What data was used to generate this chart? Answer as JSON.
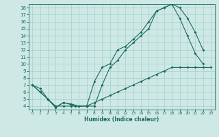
{
  "title": "",
  "xlabel": "Humidex (Indice chaleur)",
  "ylabel": "",
  "bg_color": "#cde8e5",
  "line_color": "#1a6b5a",
  "grid_color": "#a8cfc9",
  "xlim": [
    -0.5,
    23.5
  ],
  "ylim": [
    3.5,
    18.5
  ],
  "xtick_labels": [
    "0",
    "1",
    "2",
    "3",
    "4",
    "5",
    "6",
    "7",
    "8",
    "9",
    "10",
    "11",
    "12",
    "13",
    "14",
    "15",
    "16",
    "17",
    "18",
    "19",
    "20",
    "21",
    "22",
    "23"
  ],
  "xtick_vals": [
    0,
    1,
    2,
    3,
    4,
    5,
    6,
    7,
    8,
    9,
    10,
    11,
    12,
    13,
    14,
    15,
    16,
    17,
    18,
    19,
    20,
    21,
    22,
    23
  ],
  "yticks": [
    4,
    5,
    6,
    7,
    8,
    9,
    10,
    11,
    12,
    13,
    14,
    15,
    16,
    17,
    18
  ],
  "line1_x": [
    0,
    1,
    2,
    3,
    4,
    5,
    6,
    7,
    8,
    9,
    10,
    11,
    12,
    13,
    14,
    15,
    16,
    17,
    18,
    19,
    20,
    21,
    22,
    23
  ],
  "line1_y": [
    7.0,
    6.0,
    5.0,
    4.0,
    4.0,
    4.0,
    4.0,
    4.0,
    4.5,
    5.0,
    5.5,
    6.0,
    6.5,
    7.0,
    7.5,
    8.0,
    8.5,
    9.0,
    9.5,
    9.5,
    9.5,
    9.5,
    9.5,
    9.5
  ],
  "line2_x": [
    0,
    1,
    2,
    3,
    4,
    5,
    5.5,
    6,
    7,
    8,
    9,
    10,
    11,
    12,
    13,
    14,
    15,
    16,
    17,
    18,
    19,
    20,
    21,
    22
  ],
  "line2_y": [
    7.0,
    6.5,
    5.0,
    3.8,
    4.5,
    4.2,
    4.0,
    4.0,
    4.0,
    7.5,
    9.5,
    10.0,
    12.0,
    12.5,
    13.5,
    14.5,
    16.0,
    17.5,
    18.0,
    18.5,
    16.5,
    14.0,
    11.5,
    10.0
  ],
  "line3_x": [
    0,
    1,
    2,
    3,
    4,
    5,
    6,
    7,
    8,
    9,
    10,
    11,
    12,
    13,
    14,
    15,
    16,
    17,
    18,
    19,
    20,
    21,
    22
  ],
  "line3_y": [
    7.0,
    6.0,
    5.0,
    3.8,
    4.5,
    4.3,
    4.0,
    4.0,
    4.0,
    7.0,
    9.5,
    10.5,
    12.0,
    13.0,
    14.0,
    15.0,
    17.5,
    18.0,
    18.5,
    18.0,
    16.5,
    14.5,
    12.0
  ]
}
